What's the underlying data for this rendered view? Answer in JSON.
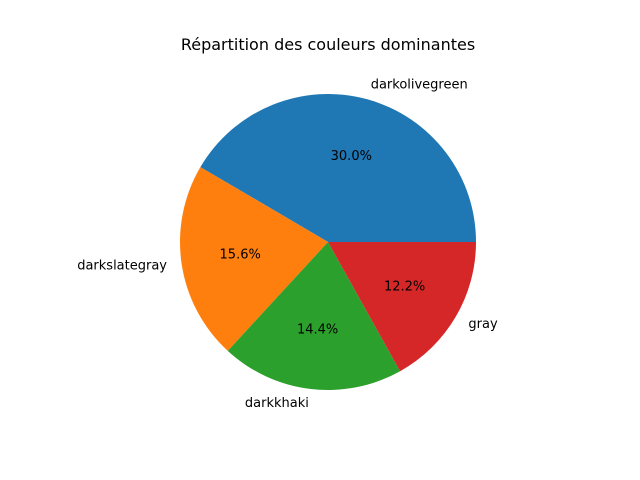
{
  "chart_data": {
    "type": "pie",
    "title": "Répartition des couleurs dominantes",
    "labels": [
      "darkolivegreen",
      "darkslategray",
      "darkkhaki",
      "gray"
    ],
    "values": [
      30.0,
      15.6,
      14.4,
      12.2
    ],
    "percent_labels": [
      "30.0%",
      "15.6%",
      "14.4%",
      "12.2%"
    ],
    "colors": [
      "#1f77b4",
      "#ff7f0e",
      "#2ca02c",
      "#d62728"
    ],
    "start_angle_deg": 0,
    "direction": "counterclockwise",
    "legend": "none"
  }
}
